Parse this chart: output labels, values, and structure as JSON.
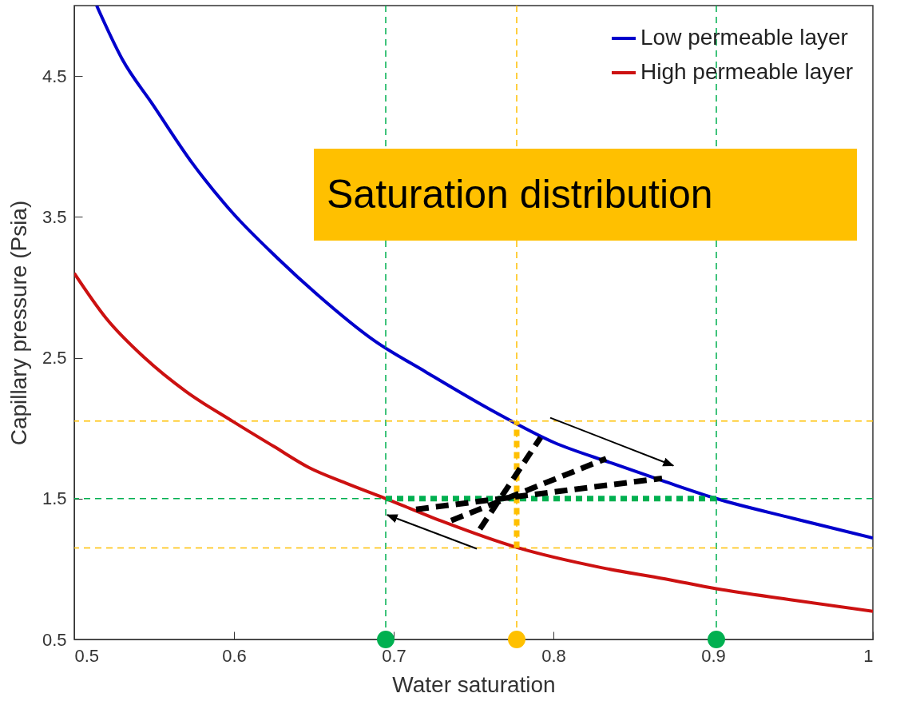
{
  "chart_data": {
    "type": "line",
    "xlabel": "Water saturation",
    "ylabel": "Capillary pressure (Psia)",
    "xlim": [
      0.5,
      1
    ],
    "ylim": [
      0.5,
      5
    ],
    "xticks": [
      0.5,
      0.6,
      0.7,
      0.8,
      0.9,
      1
    ],
    "yticks": [
      0.5,
      1.5,
      2.5,
      3.5,
      4.5
    ],
    "grid": false,
    "legend": "top right",
    "series": [
      {
        "name": "Low permeable layer",
        "color": "#0000cc",
        "x": [
          0.514,
          0.53,
          0.549,
          0.574,
          0.599,
          0.627,
          0.652,
          0.688,
          0.72,
          0.764,
          0.8,
          0.837,
          0.87,
          0.902,
          0.95,
          1.0
        ],
        "values": [
          5.0,
          4.62,
          4.3,
          3.88,
          3.53,
          3.21,
          2.95,
          2.62,
          2.4,
          2.11,
          1.9,
          1.75,
          1.62,
          1.5,
          1.36,
          1.22
        ]
      },
      {
        "name": "High permeable layer",
        "color": "#cc1111",
        "x": [
          0.5,
          0.52,
          0.544,
          0.57,
          0.599,
          0.625,
          0.647,
          0.67,
          0.695,
          0.73,
          0.778,
          0.83,
          0.87,
          0.902,
          0.95,
          1.0
        ],
        "values": [
          3.1,
          2.78,
          2.5,
          2.26,
          2.05,
          1.87,
          1.72,
          1.61,
          1.5,
          1.34,
          1.15,
          1.01,
          0.93,
          0.86,
          0.78,
          0.7
        ]
      },
      {
        "type": "line",
        "line_style": "dashed",
        "color": "#00b050",
        "x": [
          0.695,
          0.902
        ],
        "values": [
          1.5,
          1.5
        ]
      },
      {
        "type": "line",
        "line_style": "dashed",
        "color": "#ffc000",
        "x": [
          0.777,
          0.777
        ],
        "values": [
          1.15,
          2.05
        ]
      },
      {
        "type": "scatter",
        "marker": "circle",
        "color": "#00b050",
        "x": [
          0.695,
          0.902
        ],
        "values": [
          0.5,
          0.5
        ]
      },
      {
        "type": "scatter",
        "marker": "circle",
        "color": "#ffc000",
        "x": [
          0.777
        ],
        "values": [
          0.5
        ]
      }
    ],
    "ref_lines": [
      {
        "axis": "y",
        "value": 1.5,
        "color": "#00b050",
        "line_style": "dashed"
      },
      {
        "axis": "x",
        "value": 0.695,
        "color": "#00b050",
        "line_style": "dashed"
      },
      {
        "axis": "x",
        "value": 0.902,
        "color": "#00b050",
        "line_style": "dashed"
      },
      {
        "axis": "x",
        "value": 0.777,
        "color": "#ffc000",
        "line_style": "dashed"
      },
      {
        "axis": "y",
        "value": 2.05,
        "color": "#ffc000",
        "line_style": "dashed"
      },
      {
        "axis": "y",
        "value": 1.15,
        "color": "#ffc000",
        "line_style": "dashed"
      }
    ],
    "annotations": [
      "Saturation distribution"
    ]
  }
}
